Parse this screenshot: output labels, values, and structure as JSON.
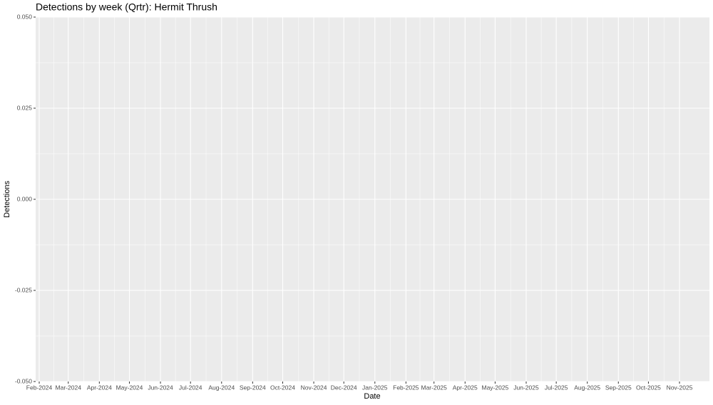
{
  "chart_data": {
    "type": "bar",
    "title": "Detections by week (Qrtr): Hermit Thrush",
    "x_label": "Date",
    "y_label": "Detections",
    "xticks": [
      {
        "value": "2024-02",
        "label": "Feb-2024"
      },
      {
        "value": "2024-03",
        "label": "Mar-2024"
      },
      {
        "value": "2024-04",
        "label": "Apr-2024"
      },
      {
        "value": "2024-05",
        "label": "May-2024"
      },
      {
        "value": "2024-06",
        "label": "Jun-2024"
      },
      {
        "value": "2024-07",
        "label": "Jul-2024"
      },
      {
        "value": "2024-08",
        "label": "Aug-2024"
      },
      {
        "value": "2024-09",
        "label": "Sep-2024"
      },
      {
        "value": "2024-10",
        "label": "Oct-2024"
      },
      {
        "value": "2024-11",
        "label": "Nov-2024"
      },
      {
        "value": "2024-12",
        "label": "Dec-2024"
      },
      {
        "value": "2025-01",
        "label": "Jan-2025"
      },
      {
        "value": "2025-02",
        "label": "Feb-2025"
      },
      {
        "value": "2025-03",
        "label": "Mar-2025"
      },
      {
        "value": "2025-04",
        "label": "Apr-2025"
      },
      {
        "value": "2025-05",
        "label": "May-2025"
      },
      {
        "value": "2025-06",
        "label": "Jun-2025"
      },
      {
        "value": "2025-07",
        "label": "Jul-2025"
      },
      {
        "value": "2025-08",
        "label": "Aug-2025"
      },
      {
        "value": "2025-09",
        "label": "Sep-2025"
      },
      {
        "value": "2025-10",
        "label": "Oct-2025"
      },
      {
        "value": "2025-11",
        "label": "Nov-2025"
      }
    ],
    "ylim": [
      -0.05,
      0.05
    ],
    "yticks": [
      {
        "value": -0.05,
        "label": "-0.050"
      },
      {
        "value": -0.025,
        "label": "-0.025"
      },
      {
        "value": 0,
        "label": "0.000"
      },
      {
        "value": 0.025,
        "label": "0.025"
      },
      {
        "value": 0.05,
        "label": "0.050"
      }
    ],
    "grid": true
  }
}
